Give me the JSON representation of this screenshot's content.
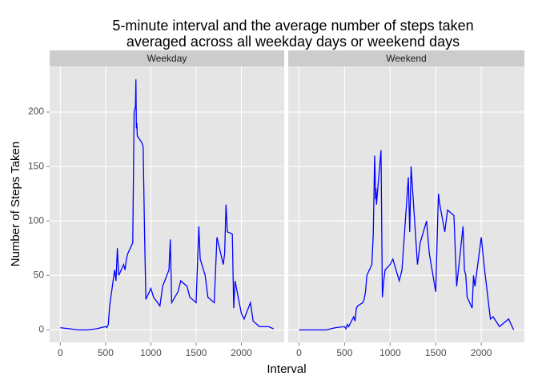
{
  "figure": {
    "title": [
      "5-minute interval and the average number of steps taken",
      "averaged across all weekday days or weekend days"
    ],
    "x_label": "Interval",
    "y_label": "Number of Steps Taken"
  },
  "chart_data": [
    {
      "type": "line",
      "title": "Weekday",
      "color": "#0000ff",
      "x": [
        0,
        100,
        200,
        300,
        400,
        500,
        515,
        530,
        545,
        600,
        615,
        630,
        645,
        700,
        715,
        730,
        745,
        800,
        815,
        830,
        835,
        840,
        845,
        850,
        900,
        915,
        930,
        945,
        1000,
        1030,
        1100,
        1130,
        1200,
        1215,
        1230,
        1300,
        1330,
        1400,
        1430,
        1500,
        1530,
        1545,
        1600,
        1630,
        1700,
        1730,
        1800,
        1815,
        1830,
        1845,
        1900,
        1915,
        1930,
        2000,
        2030,
        2100,
        2130,
        2200,
        2300,
        2355
      ],
      "values": [
        2,
        1,
        0,
        0,
        1,
        3,
        2,
        5,
        22,
        55,
        45,
        75,
        50,
        60,
        55,
        65,
        70,
        80,
        200,
        205,
        230,
        185,
        190,
        178,
        172,
        168,
        90,
        28,
        38,
        30,
        22,
        40,
        55,
        83,
        25,
        35,
        45,
        40,
        30,
        25,
        95,
        65,
        50,
        30,
        25,
        85,
        60,
        70,
        115,
        90,
        88,
        20,
        45,
        15,
        10,
        25,
        8,
        3,
        3,
        1
      ],
      "xlim": [
        -118,
        2473
      ],
      "ylim": [
        -11.5,
        241.9
      ],
      "xticks": [
        0,
        500,
        1000,
        1500,
        2000
      ],
      "yticks": [
        0,
        50,
        100,
        150,
        200
      ],
      "grid": true
    },
    {
      "type": "line",
      "title": "Weekend",
      "color": "#0000ff",
      "x": [
        0,
        100,
        200,
        300,
        400,
        500,
        515,
        530,
        545,
        600,
        615,
        630,
        645,
        700,
        715,
        730,
        745,
        800,
        815,
        830,
        835,
        840,
        845,
        850,
        900,
        915,
        930,
        945,
        1000,
        1030,
        1100,
        1130,
        1200,
        1215,
        1230,
        1300,
        1330,
        1400,
        1430,
        1500,
        1530,
        1545,
        1600,
        1630,
        1700,
        1730,
        1800,
        1815,
        1830,
        1845,
        1900,
        1915,
        1930,
        2000,
        2030,
        2100,
        2130,
        2200,
        2300,
        2355
      ],
      "values": [
        0,
        0,
        0,
        0,
        2,
        3,
        1,
        5,
        3,
        12,
        8,
        20,
        22,
        25,
        28,
        35,
        50,
        60,
        88,
        160,
        145,
        120,
        130,
        115,
        165,
        30,
        45,
        55,
        60,
        65,
        45,
        55,
        140,
        90,
        150,
        60,
        80,
        100,
        70,
        35,
        125,
        115,
        90,
        110,
        105,
        40,
        95,
        55,
        50,
        30,
        20,
        50,
        40,
        85,
        60,
        10,
        12,
        3,
        10,
        0
      ],
      "xlim": [
        -118,
        2473
      ],
      "ylim": [
        -11.5,
        241.9
      ],
      "xticks": [
        0,
        500,
        1000,
        1500,
        2000
      ],
      "yticks": [
        0,
        50,
        100,
        150,
        200
      ],
      "grid": true
    }
  ]
}
